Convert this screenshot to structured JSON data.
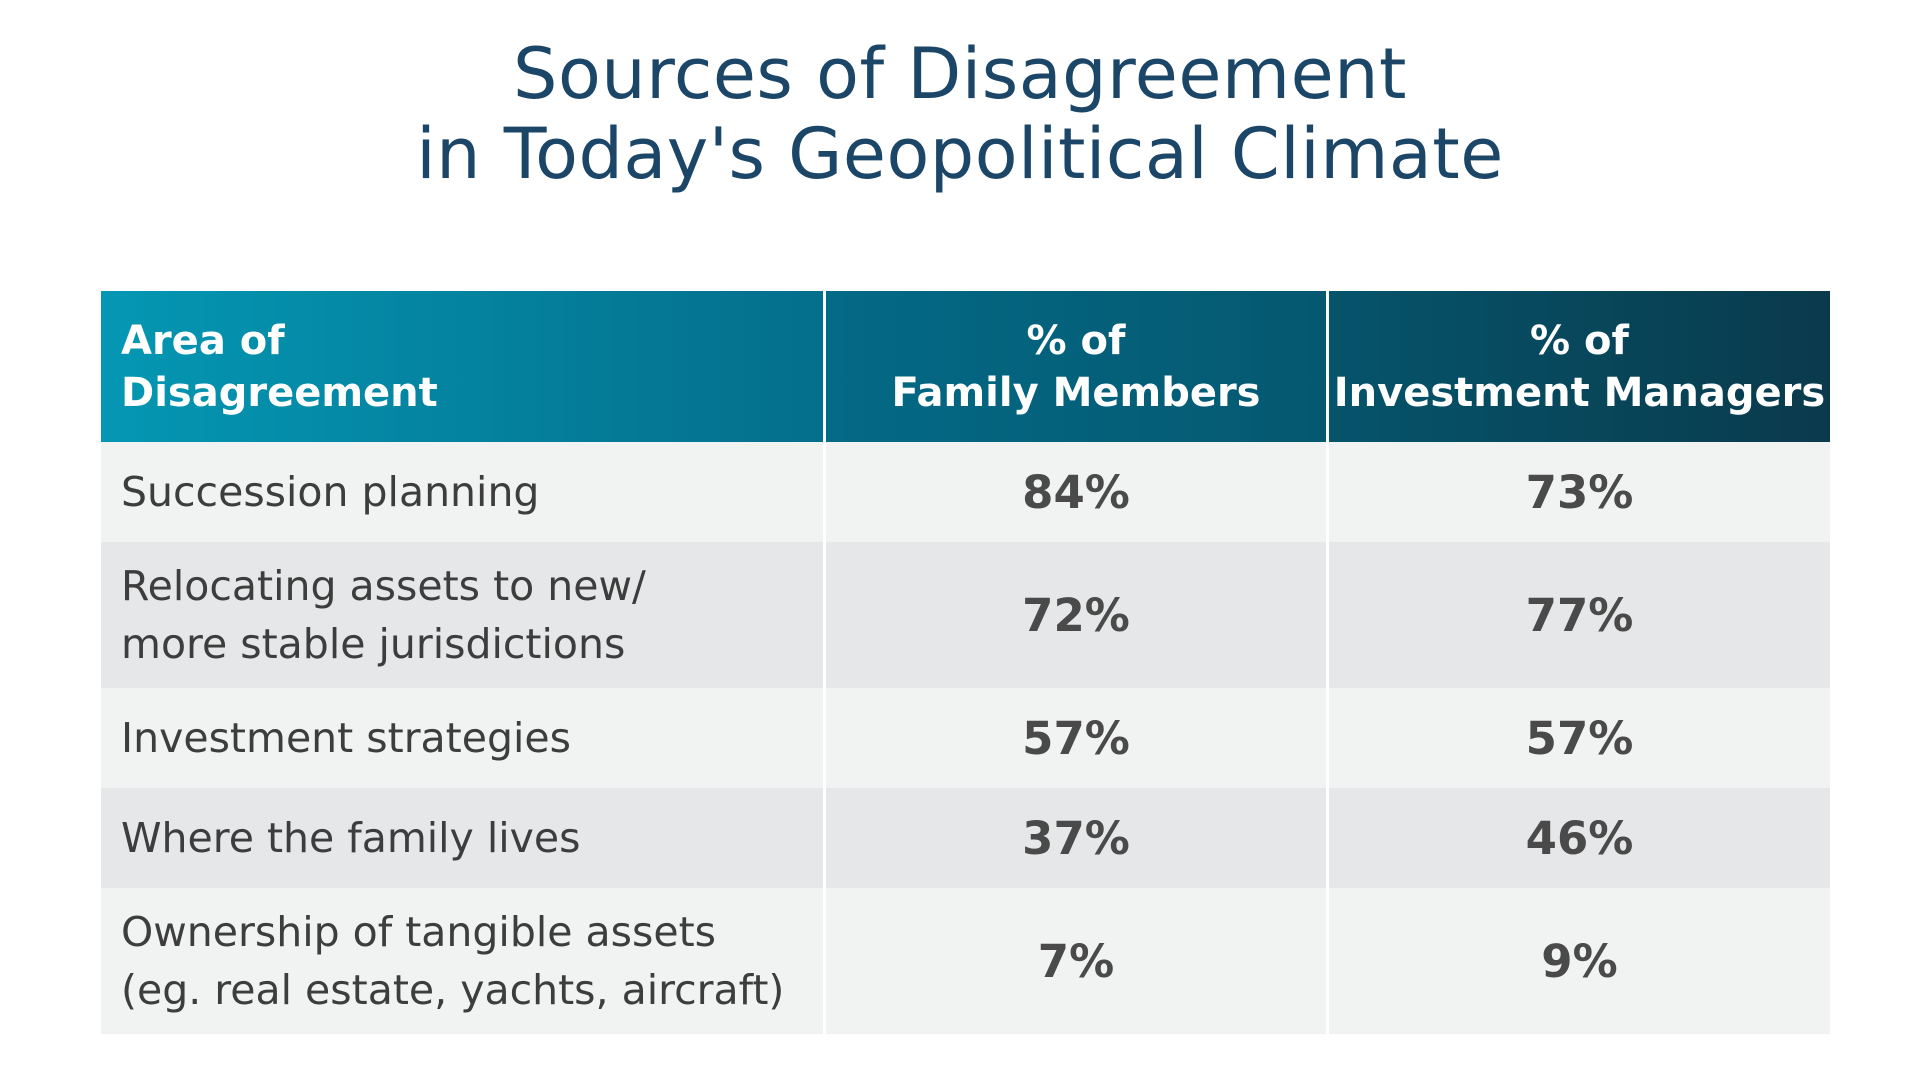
{
  "chart_data": {
    "type": "table",
    "title": "Sources of Disagreement in Today's Geopolitical Climate",
    "title_lines": [
      "Sources of Disagreement",
      "in Today's Geopolitical Climate"
    ],
    "columns": [
      {
        "lines": [
          "Area of",
          "Disagreement"
        ]
      },
      {
        "lines": [
          "% of",
          "Family Members"
        ]
      },
      {
        "lines": [
          "% of",
          "Investment Managers"
        ]
      }
    ],
    "rows": [
      {
        "area_lines": [
          "Succession planning"
        ],
        "family": "84%",
        "managers": "73%"
      },
      {
        "area_lines": [
          "Relocating assets to new/",
          "more stable jurisdictions"
        ],
        "family": "72%",
        "managers": "77%"
      },
      {
        "area_lines": [
          "Investment strategies"
        ],
        "family": "57%",
        "managers": "57%"
      },
      {
        "area_lines": [
          "Where the family lives"
        ],
        "family": "37%",
        "managers": "46%"
      },
      {
        "area_lines": [
          "Ownership of tangible assets",
          "(eg. real estate, yachts, aircraft)"
        ],
        "family": "7%",
        "managers": "9%"
      }
    ],
    "values": {
      "family_members": [
        84,
        72,
        57,
        37,
        7
      ],
      "investment_managers": [
        73,
        77,
        57,
        46,
        9
      ]
    }
  },
  "colors": {
    "title": "#1c4668",
    "header_start": "#0497b3",
    "header_end": "#0a3a4c",
    "row_light": "#f1f2f2",
    "row_dark": "#e6e7e8",
    "text": "#3d3d3d"
  }
}
